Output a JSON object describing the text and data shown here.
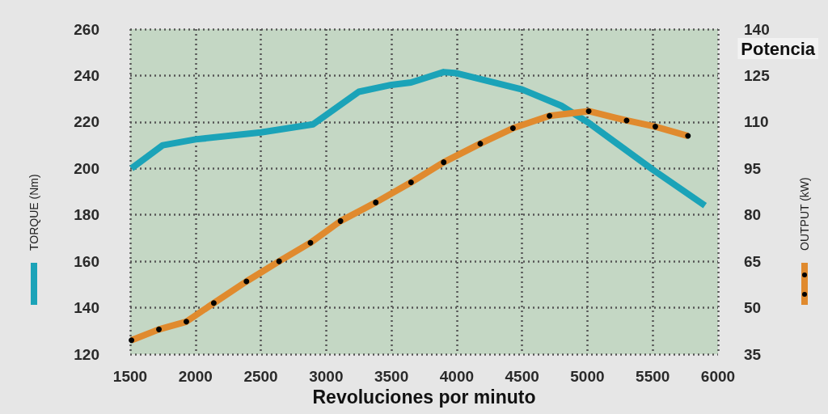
{
  "chart_data": {
    "type": "line",
    "title": "Potencia",
    "xlabel": "Revoluciones por minuto",
    "ylabel": "TORQUE (Nm)",
    "y2label": "OUTPUT (kW)",
    "series": [
      {
        "color": "#1ba3b8",
        "marker": "none",
        "x": [
          1510,
          1750,
          2000,
          2500,
          2900,
          3250,
          3500,
          3650,
          3900,
          4000,
          4500,
          4800,
          5000,
          5500,
          5900
        ],
        "values": [
          200,
          210,
          212.5,
          215.5,
          219,
          233,
          236,
          237,
          241.5,
          241,
          234,
          227,
          220,
          199.5,
          184
        ]
      },
      {
        "color": "#e08a2e",
        "marker": "circle",
        "axis": "y2",
        "x": [
          1510,
          1720,
          1930,
          2140,
          2390,
          2640,
          2880,
          3110,
          3380,
          3650,
          3900,
          4180,
          4430,
          4710,
          5010,
          5300,
          5520,
          5770
        ],
        "values": [
          39.5,
          43,
          45.5,
          51.5,
          58.5,
          65,
          71,
          78,
          84,
          90.5,
          97,
          103,
          108,
          112,
          113.5,
          110.5,
          108.5,
          105.5
        ]
      }
    ],
    "xlim": [
      1500,
      6000
    ],
    "xticks": [
      1500,
      2000,
      2500,
      3000,
      3500,
      4000,
      4500,
      5000,
      5500,
      6000
    ],
    "ylim": [
      120,
      260
    ],
    "yticks": [
      120,
      140,
      160,
      180,
      200,
      220,
      240,
      260
    ],
    "y2lim": [
      35,
      140
    ],
    "y2ticks": [
      35,
      50,
      65,
      80,
      95,
      110,
      125,
      140
    ],
    "grid": true,
    "line_style": "solid"
  }
}
